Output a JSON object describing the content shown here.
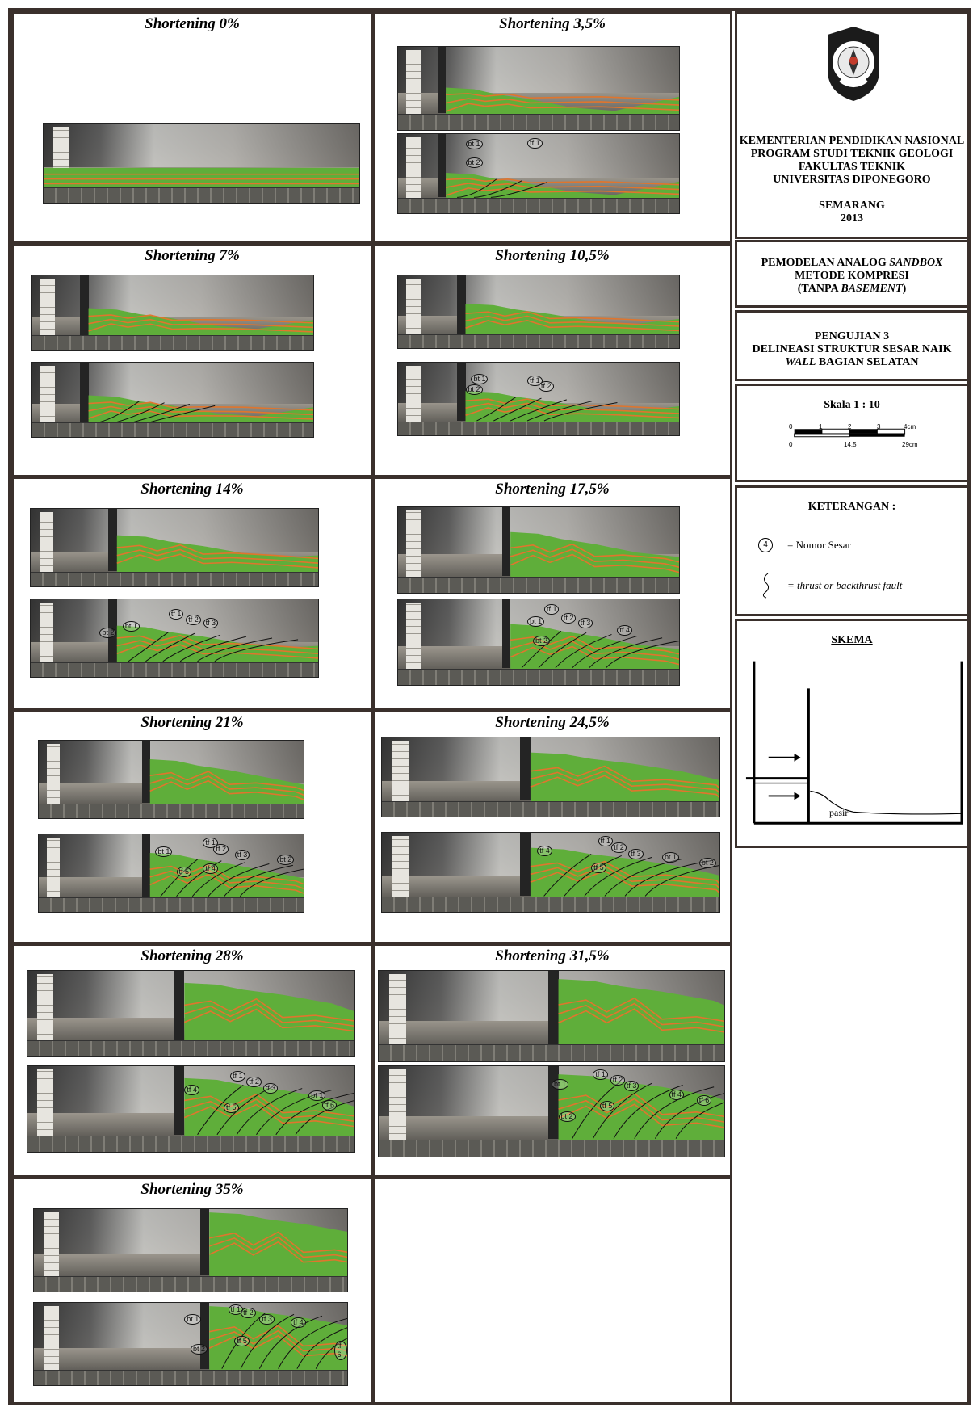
{
  "panels": [
    {
      "title": "Shortening 0%"
    },
    {
      "title": "Shortening 3,5%"
    },
    {
      "title": "Shortening 7%"
    },
    {
      "title": "Shortening 10,5%"
    },
    {
      "title": "Shortening 14%"
    },
    {
      "title": "Shortening 17,5%"
    },
    {
      "title": "Shortening 21%"
    },
    {
      "title": "Shortening 24,5%"
    },
    {
      "title": "Shortening 28%"
    },
    {
      "title": "Shortening 31,5%"
    },
    {
      "title": "Shortening 35%"
    }
  ],
  "fault_labels": {
    "p1": [
      "bt 1",
      "tf 1",
      "bt 2"
    ],
    "p3": [
      "bt 1",
      "tf 1",
      "tf 2",
      "bt 2"
    ],
    "p4": [
      "tf 1",
      "tf 2",
      "tf 3",
      "bt 1",
      "bt 2"
    ],
    "p5": [
      "tf 1",
      "tf 2",
      "tf 3",
      "bt 1",
      "bt 2",
      "tf 4"
    ],
    "p6": [
      "tf 1",
      "tf 2",
      "tf 3",
      "bt 1",
      "bt 2",
      "tf 4",
      "tf 5"
    ],
    "p7": [
      "tf 1",
      "tf 2",
      "tf 3",
      "bt 1",
      "tf 4",
      "tf 5",
      "bt 2"
    ],
    "p8": [
      "tf 1",
      "tf 2",
      "tf 3",
      "tf 4",
      "bt 1",
      "tf 5",
      "tf 6"
    ],
    "p9": [
      "tf 1",
      "tf 2",
      "tf 3",
      "bt 1",
      "tf 4",
      "tf 5",
      "tf 6",
      "bt 2"
    ],
    "p10": [
      "tf 1",
      "tf 2",
      "tf 3",
      "bt 1",
      "tf 4",
      "tf 5",
      "tf 6",
      "bt 2"
    ],
    "p11": [
      "tf 1",
      "tf 2",
      "tf 3",
      "bt 1",
      "tf 4",
      "tf 5",
      "tf 6",
      "bt 2"
    ]
  },
  "header": {
    "line1": "KEMENTERIAN PENDIDIKAN NASIONAL",
    "line2": "PROGRAM STUDI TEKNIK GEOLOGI",
    "line3": "FAKULTAS TEKNIK",
    "line4": "UNIVERSITAS DIPONEGORO",
    "city": "SEMARANG",
    "year": "2013",
    "logo_text_top": "UNIVERSITAS DIPONEGORO",
    "logo_text_bottom": "SEMARANG"
  },
  "project": {
    "line1_a": "PEMODELAN ANALOG ",
    "line1_b": "SANDBOX",
    "line2": "METODE KOMPRESI",
    "line3_a": "(TANPA ",
    "line3_b": "BASEMENT",
    "line3_c": ")"
  },
  "test": {
    "line1": "PENGUJIAN 3",
    "line2": "DELINEASI STRUKTUR SESAR NAIK",
    "line3_a": "WALL",
    "line3_b": " BAGIAN SELATAN"
  },
  "scale": {
    "label": "Skala 1 : 10",
    "ticks_top": [
      "0",
      "1",
      "2",
      "3",
      "4cm"
    ],
    "ticks_bottom": [
      "0",
      "14,5",
      "29cm"
    ]
  },
  "legend": {
    "title": "KETERANGAN :",
    "item1_symbol": "4",
    "item1_text": "= Nomor Sesar",
    "item2_text": "= thrust or backthrust fault"
  },
  "schema": {
    "title": "SKEMA",
    "label": "pasir"
  },
  "colors": {
    "border": "#3a302c",
    "sand_green": "#5fae3a",
    "sand_orange": "#e0752d",
    "fault_line": "#111111"
  }
}
